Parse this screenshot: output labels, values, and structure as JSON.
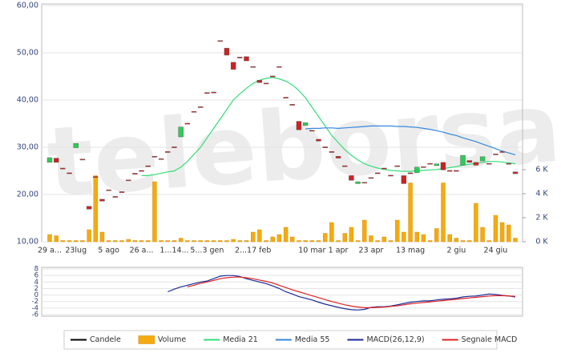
{
  "watermark": "teleborsa",
  "chart_data": [
    {
      "type": "candlestick",
      "categories": [
        "29 a...",
        null,
        null,
        null,
        "23lug",
        null,
        null,
        null,
        null,
        "5 ago",
        null,
        null,
        null,
        null,
        "26 a...",
        null,
        null,
        null,
        null,
        "1...14...",
        null,
        null,
        null,
        null,
        "5...3 gen",
        null,
        null,
        null,
        null,
        null,
        null,
        "2...17 feb",
        null,
        null,
        null,
        null,
        null,
        null,
        null,
        null,
        "10 mar",
        null,
        null,
        null,
        "1 apr",
        null,
        null,
        null,
        null,
        "23 apr",
        null,
        null,
        null,
        null,
        null,
        "13 mag",
        null,
        null,
        null,
        null,
        null,
        null,
        "2 giu",
        null,
        null,
        null,
        null,
        null,
        "24 giu",
        null,
        null,
        null
      ],
      "ylim": [
        10,
        60
      ],
      "yticks": [
        {
          "value": 60,
          "label": "60,00"
        },
        {
          "value": 50,
          "label": "50,00"
        },
        {
          "value": 40,
          "label": "40,00"
        },
        {
          "value": 30,
          "label": "30,00"
        },
        {
          "value": 20,
          "label": "20,00"
        },
        {
          "value": 10,
          "label": "10,00"
        }
      ],
      "y2lim": [
        0,
        19.67
      ],
      "y2ticks": [
        {
          "value": 0,
          "label": "0 K"
        },
        {
          "value": 2,
          "label": "2 K"
        },
        {
          "value": 4,
          "label": "4 K"
        },
        {
          "value": 6,
          "label": "6 K"
        }
      ],
      "grid": true,
      "up_color": "#2ecc55",
      "down_color": "#cc2222",
      "series": [
        {
          "name": "Candele",
          "type": "candlestick",
          "color": "#000000",
          "open": [
            26.8,
            27.7,
            25.6,
            24.6,
            29.9,
            27.5,
            17.5,
            23.8,
            19.0,
            21.0,
            19.6,
            20.6,
            23.1,
            24.5,
            25.1,
            26.1,
            28.1,
            27.6,
            29.1,
            30.1,
            32.2,
            35.1,
            37.6,
            38.6,
            41.6,
            41.7,
            52.6,
            51.0,
            48.0,
            49.1,
            49.2,
            47.1,
            44.2,
            43.6,
            45.1,
            47.1,
            40.6,
            39.1,
            35.5,
            34.6,
            33.6,
            31.7,
            30.1,
            29.1,
            28.1,
            26.1,
            24.0,
            22.3,
            22.6,
            23.6,
            24.6,
            25.6,
            24.1,
            26.1,
            24.0,
            24.6,
            24.6,
            25.9,
            26.6,
            26.1,
            26.8,
            25.1,
            25.1,
            26.2,
            27.2,
            26.8,
            27.1,
            26.6,
            28.6,
            29.1,
            26.6,
            24.8
          ],
          "close": [
            27.8,
            26.8,
            25.4,
            24.4,
            30.8,
            27.3,
            16.9,
            23.6,
            18.6,
            20.8,
            19.4,
            20.4,
            22.9,
            24.3,
            24.9,
            25.9,
            27.9,
            27.4,
            28.9,
            29.9,
            34.3,
            34.9,
            37.4,
            38.4,
            41.4,
            41.5,
            52.4,
            49.5,
            46.5,
            48.9,
            48.3,
            46.9,
            43.7,
            43.4,
            44.9,
            46.9,
            40.4,
            38.9,
            33.7,
            35.2,
            33.4,
            31.3,
            29.9,
            28.9,
            27.7,
            25.9,
            23.0,
            22.7,
            22.4,
            23.4,
            24.4,
            25.4,
            23.9,
            25.9,
            22.3,
            24.4,
            25.8,
            25.7,
            26.4,
            26.5,
            25.2,
            24.9,
            24.9,
            28.3,
            26.8,
            26.2,
            28.0,
            26.4,
            28.4,
            28.9,
            26.4,
            24.4
          ]
        },
        {
          "name": "Volume",
          "type": "bar",
          "axis": "y2",
          "color": "#f5aa10",
          "values": [
            0.6,
            0.5,
            0.1,
            0.1,
            0.1,
            0.1,
            1.0,
            5.5,
            0.8,
            0.1,
            0.1,
            0.1,
            0.2,
            0.1,
            0.1,
            0.1,
            5.0,
            0.1,
            0.1,
            0.1,
            0.3,
            0.1,
            0.1,
            0.1,
            0.1,
            0.1,
            0.1,
            0.1,
            0.2,
            0.1,
            0.1,
            0.8,
            1.0,
            0.1,
            0.4,
            0.6,
            1.2,
            0.4,
            0.1,
            0.1,
            0.1,
            0.1,
            0.7,
            1.6,
            0.1,
            0.7,
            1.2,
            0.1,
            1.8,
            0.5,
            0.1,
            0.4,
            0.1,
            1.8,
            0.8,
            4.9,
            0.8,
            0.6,
            0.1,
            1.1,
            4.9,
            0.6,
            0.3,
            0.1,
            0.1,
            3.2,
            1.2,
            0.1,
            2.2,
            1.6,
            1.4,
            0.3
          ]
        },
        {
          "name": "Media 21",
          "type": "line",
          "color": "#33dd77",
          "values": [
            null,
            null,
            null,
            null,
            null,
            null,
            null,
            null,
            null,
            null,
            null,
            null,
            null,
            null,
            24.0,
            24.0,
            24.2,
            24.5,
            24.8,
            25.0,
            25.8,
            27.0,
            28.5,
            30.0,
            32.0,
            34.0,
            36.0,
            38.0,
            40.0,
            41.3,
            42.5,
            43.5,
            44.2,
            44.6,
            44.8,
            44.5,
            44.0,
            43.2,
            42.0,
            40.5,
            38.5,
            36.5,
            34.5,
            32.5,
            31.0,
            29.5,
            28.3,
            27.3,
            26.5,
            26.0,
            25.6,
            25.3,
            25.1,
            25.0,
            24.9,
            24.9,
            25.0,
            25.1,
            25.2,
            25.3,
            25.5,
            25.7,
            25.9,
            26.2,
            26.4,
            26.6,
            26.8,
            27.0,
            27.0,
            26.9,
            26.7,
            26.5
          ]
        },
        {
          "name": "Media 55",
          "type": "line",
          "color": "#3388dd",
          "values": [
            null,
            null,
            null,
            null,
            null,
            null,
            null,
            null,
            null,
            null,
            null,
            null,
            null,
            null,
            null,
            null,
            null,
            null,
            null,
            null,
            null,
            null,
            null,
            null,
            null,
            null,
            null,
            null,
            null,
            null,
            null,
            null,
            null,
            null,
            null,
            null,
            null,
            null,
            null,
            33.9,
            34.0,
            34.0,
            34.1,
            34.1,
            34.0,
            34.1,
            34.2,
            34.3,
            34.4,
            34.5,
            34.5,
            34.5,
            34.5,
            34.4,
            34.4,
            34.3,
            34.2,
            34.0,
            33.8,
            33.5,
            33.2,
            32.8,
            32.5,
            32.0,
            31.6,
            31.2,
            30.7,
            30.2,
            29.7,
            29.2,
            28.8,
            28.4
          ]
        }
      ]
    },
    {
      "type": "line",
      "ylim": [
        -6.5,
        8.5
      ],
      "yticks": [
        8,
        6,
        4,
        2,
        0,
        -2,
        -4,
        -6
      ],
      "grid": true,
      "series": [
        {
          "name": "MACD(26,12,9)",
          "color": "#1a2a99",
          "values": [
            null,
            null,
            null,
            null,
            null,
            null,
            null,
            null,
            null,
            null,
            null,
            null,
            null,
            null,
            null,
            null,
            null,
            null,
            1.0,
            1.8,
            2.5,
            3.0,
            3.5,
            4.0,
            4.3,
            5.0,
            5.8,
            6.0,
            6.0,
            5.7,
            5.0,
            4.5,
            4.0,
            3.5,
            2.8,
            2.0,
            1.0,
            0.3,
            -0.5,
            -1.0,
            -1.5,
            -2.2,
            -2.8,
            -3.3,
            -3.8,
            -4.2,
            -4.5,
            -4.6,
            -4.4,
            -3.8,
            -3.6,
            -3.6,
            -3.4,
            -3.0,
            -2.6,
            -2.2,
            -2.0,
            -1.8,
            -1.8,
            -1.5,
            -1.3,
            -1.2,
            -1.0,
            -0.6,
            -0.4,
            -0.3,
            0.0,
            0.3,
            0.2,
            -0.1,
            -0.3,
            -0.6
          ]
        },
        {
          "name": "Segnale MACD",
          "color": "#dd2222",
          "values": [
            null,
            null,
            null,
            null,
            null,
            null,
            null,
            null,
            null,
            null,
            null,
            null,
            null,
            null,
            null,
            null,
            null,
            null,
            null,
            null,
            null,
            2.5,
            3.0,
            3.6,
            4.0,
            4.5,
            5.0,
            5.3,
            5.5,
            5.5,
            5.3,
            5.0,
            4.6,
            4.2,
            3.7,
            3.0,
            2.3,
            1.6,
            1.0,
            0.4,
            -0.2,
            -0.8,
            -1.4,
            -2.0,
            -2.5,
            -3.0,
            -3.4,
            -3.7,
            -3.9,
            -3.9,
            -3.8,
            -3.7,
            -3.5,
            -3.3,
            -3.0,
            -2.7,
            -2.5,
            -2.3,
            -2.1,
            -1.9,
            -1.7,
            -1.5,
            -1.3,
            -1.1,
            -0.9,
            -0.7,
            -0.5,
            -0.3,
            -0.2,
            -0.2,
            -0.3,
            -0.4
          ]
        }
      ]
    }
  ]
}
